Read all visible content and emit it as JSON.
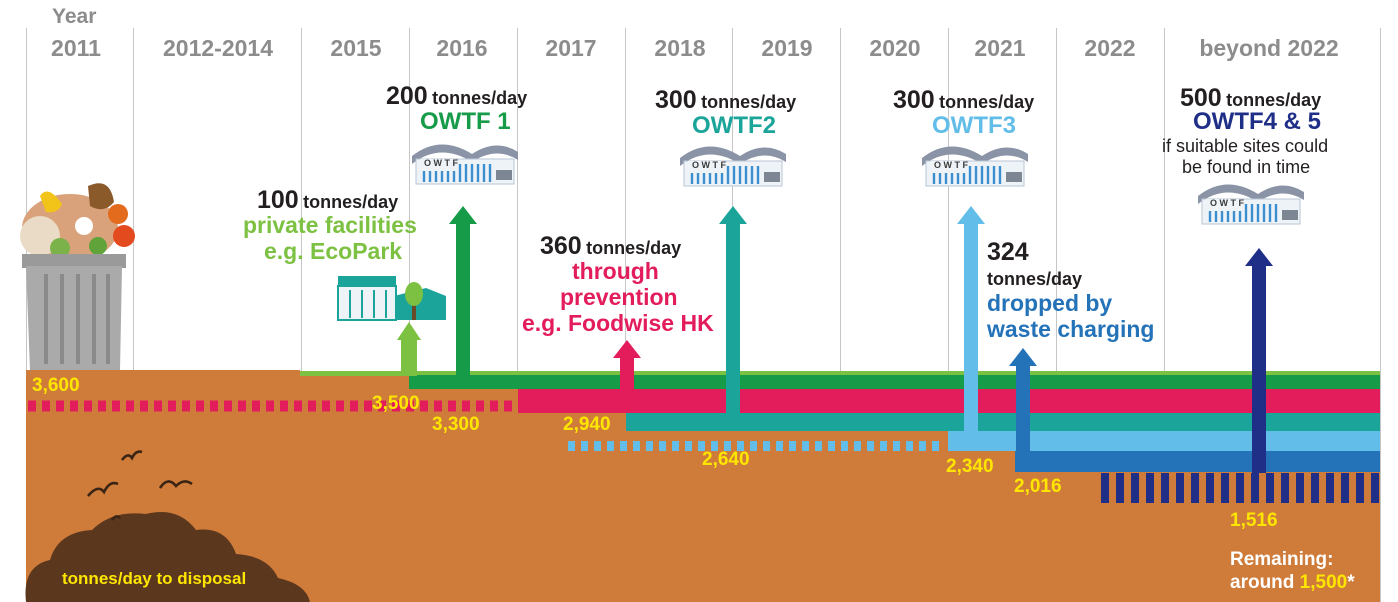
{
  "year_heading": "Year",
  "years": [
    "2011",
    "2012-2014",
    "2015",
    "2016",
    "2017",
    "2018",
    "2019",
    "2020",
    "2021",
    "2022",
    "beyond 2022"
  ],
  "milestones": {
    "private": {
      "amount": "100",
      "unit": "tonnes/day",
      "line1": "private facilities",
      "line2": "e.g. EcoPark"
    },
    "owtf1": {
      "amount": "200",
      "unit": "tonnes/day",
      "name": "OWTF 1"
    },
    "owtf2": {
      "amount": "300",
      "unit": "tonnes/day",
      "name": "OWTF2"
    },
    "owtf3": {
      "amount": "300",
      "unit": "tonnes/day",
      "name": "OWTF3"
    },
    "owtf45": {
      "amount": "500",
      "unit": "tonnes/day",
      "name": "OWTF4 & 5",
      "note1": "if suitable sites could",
      "note2": "be found in time"
    },
    "prevention": {
      "amount": "360",
      "unit": "tonnes/day",
      "line1": "through",
      "line2": "prevention",
      "line3": "e.g. Foodwise HK"
    },
    "charging": {
      "amount": "324",
      "unit": "tonnes/day",
      "line1": "dropped by",
      "line2": "waste charging"
    }
  },
  "building_letters": "O W T F",
  "levels": [
    "3,600",
    "3,500",
    "3,300",
    "2,940",
    "2,640",
    "2,340",
    "2,016",
    "1,516"
  ],
  "disposal_label": "tonnes/day to disposal",
  "remaining": {
    "label": "Remaining:",
    "prefix": "around ",
    "value": "1,500",
    "suffix": "*"
  },
  "colors": {
    "soil": "#cf7b3a",
    "private": "#7dc142",
    "owtf1": "#169b48",
    "prevention": "#e31c5b",
    "owtf2": "#1ba59a",
    "owtf3": "#62bde9",
    "charging": "#2473b9",
    "owtf45": "#1f2f87",
    "level_text": "#ffe600",
    "year_text": "#8c8c8c"
  }
}
